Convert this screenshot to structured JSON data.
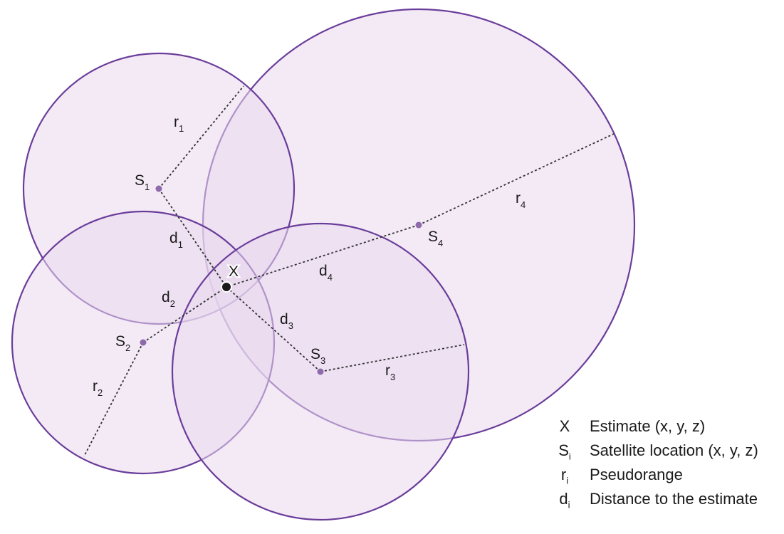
{
  "colors": {
    "fill": "#e9d8ee",
    "stroke": "#6a3d9a",
    "dot": "#8e6aab",
    "estimate": "#1a1a1a"
  },
  "satellites": [
    {
      "id": "S1",
      "letter": "S",
      "index": "1",
      "range_letter": "r",
      "dist_letter": "d"
    },
    {
      "id": "S2",
      "letter": "S",
      "index": "2",
      "range_letter": "r",
      "dist_letter": "d"
    },
    {
      "id": "S3",
      "letter": "S",
      "index": "3",
      "range_letter": "r",
      "dist_letter": "d"
    },
    {
      "id": "S4",
      "letter": "S",
      "index": "4",
      "range_letter": "r",
      "dist_letter": "d"
    }
  ],
  "estimate": {
    "label": "X"
  },
  "legend": [
    {
      "symbol": "X",
      "sub": "",
      "text": "Estimate (x, y, z)"
    },
    {
      "symbol": "S",
      "sub": "i",
      "text": "Satellite location (x, y, z)"
    },
    {
      "symbol": "r",
      "sub": "i",
      "text": "Pseudorange"
    },
    {
      "symbol": "d",
      "sub": "i",
      "text": "Distance to the estimate"
    }
  ]
}
